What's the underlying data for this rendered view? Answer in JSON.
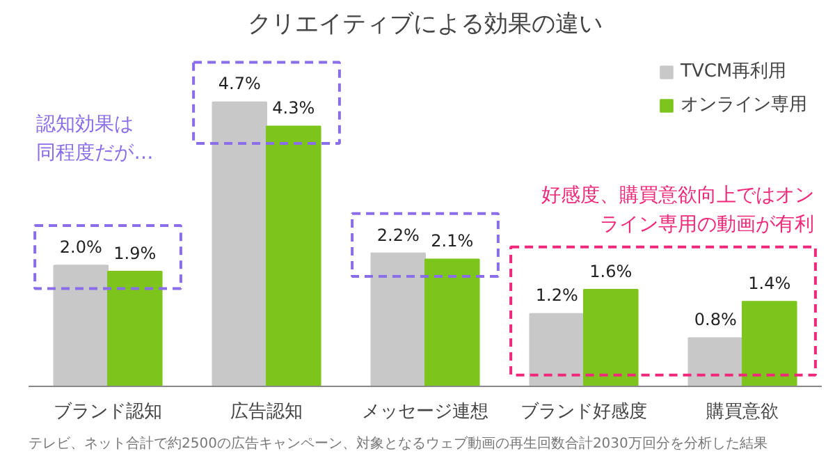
{
  "chart_data": {
    "type": "bar",
    "title": "クリエイティブによる効果の違い",
    "categories": [
      "ブランド認知",
      "広告認知",
      "メッセージ連想",
      "ブランド好感度",
      "購買意欲"
    ],
    "series": [
      {
        "name": "TVCM再利用",
        "color": "#c8c8c8",
        "values": [
          2.0,
          4.7,
          2.2,
          1.2,
          0.8
        ],
        "value_labels": [
          "2.0%",
          "4.7%",
          "2.2%",
          "1.2%",
          "0.8%"
        ]
      },
      {
        "name": "オンライン専用",
        "color": "#7dc51c",
        "values": [
          1.9,
          4.3,
          2.1,
          1.6,
          1.4
        ],
        "value_labels": [
          "1.9%",
          "4.3%",
          "2.1%",
          "1.6%",
          "1.4%"
        ]
      }
    ],
    "legend": "top right",
    "grid": false,
    "annotations": [
      "認知効果は同程度だが…",
      "好感度、購買意欲向上ではオンライン専用の動画が有利",
      "テレビ、ネット合計で約2500の広告キャンペーン、対象となるウェブ動画の再生回数合計2030万回分を分析した結果"
    ]
  }
}
